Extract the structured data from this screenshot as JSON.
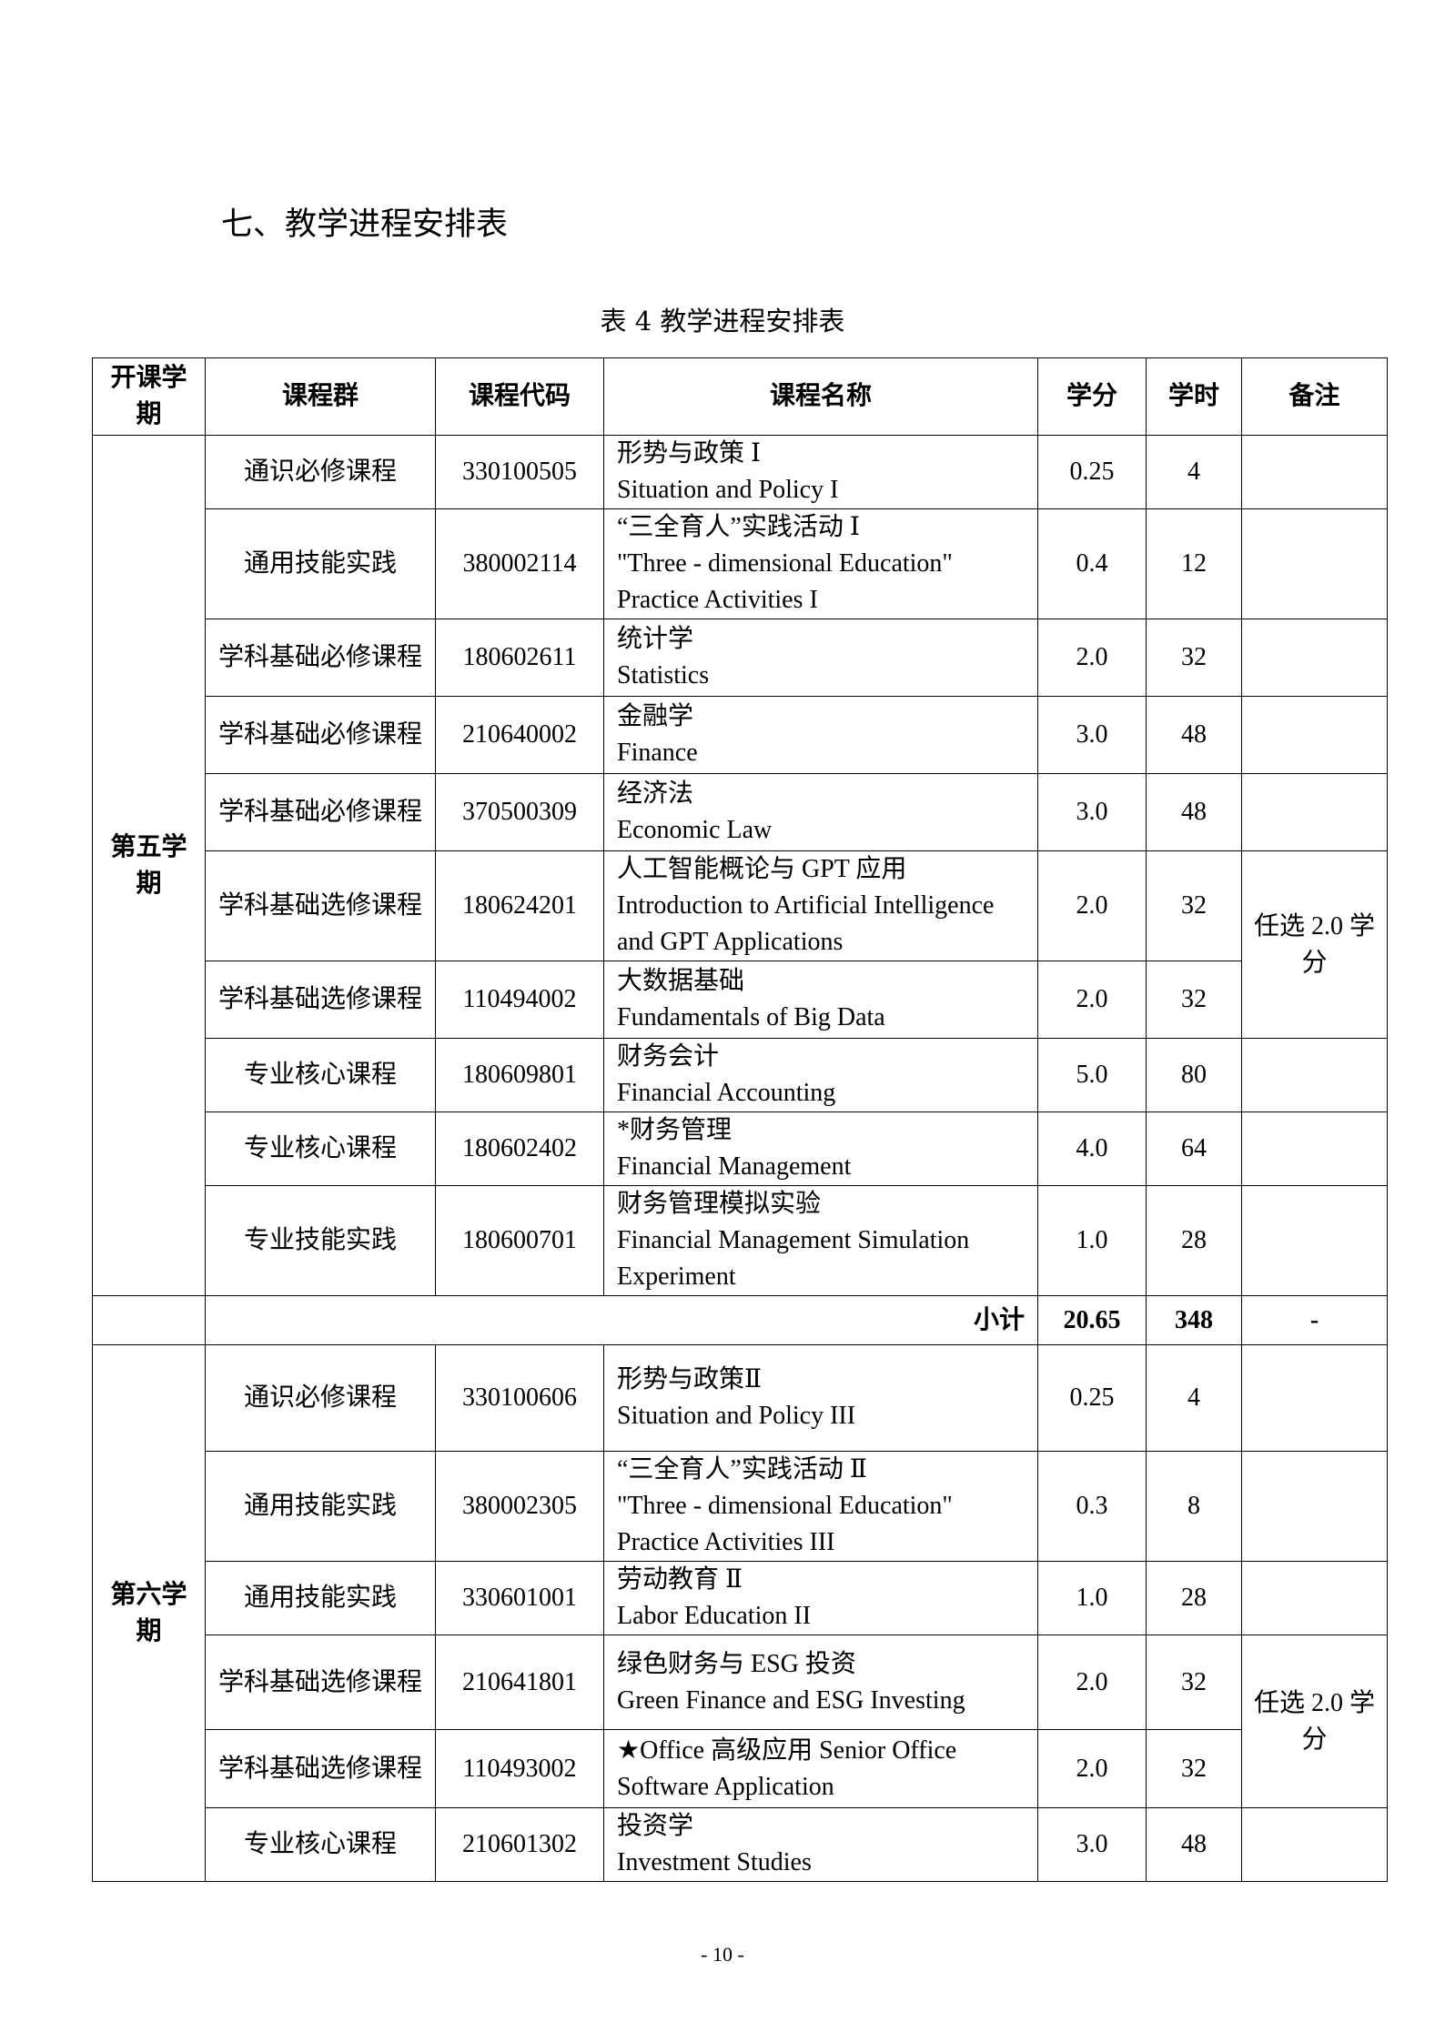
{
  "heading": "七、教学进程安排表",
  "caption": "表 4  教学进程安排表",
  "headers": {
    "semester": "开课学期",
    "group": "课程群",
    "code": "课程代码",
    "name": "课程名称",
    "credits": "学分",
    "hours": "学时",
    "remark": "备注"
  },
  "sem5": {
    "label": "第五学期",
    "rows": [
      {
        "group": "通识必修课程",
        "code": "330100505",
        "name": "形势与政策 Ⅰ",
        "name_en": "Situation and Policy I",
        "credits": "0.25",
        "hours": "4"
      },
      {
        "group": "通用技能实践",
        "code": "380002114",
        "name": "“三全育人”实践活动 Ⅰ",
        "name_en": "\"Three - dimensional Education\" Practice Activities I",
        "credits": "0.4",
        "hours": "12"
      },
      {
        "group": "学科基础必修课程",
        "code": "180602611",
        "name": "统计学",
        "name_en": "Statistics",
        "credits": "2.0",
        "hours": "32"
      },
      {
        "group": "学科基础必修课程",
        "code": "210640002",
        "name": "金融学",
        "name_en": "Finance",
        "credits": "3.0",
        "hours": "48"
      },
      {
        "group": "学科基础必修课程",
        "code": "370500309",
        "name": "经济法",
        "name_en": "Economic Law",
        "credits": "3.0",
        "hours": "48"
      },
      {
        "group": "学科基础选修课程",
        "code": "180624201",
        "name": "人工智能概论与 GPT 应用",
        "name_en": "Introduction to Artificial Intelligence and GPT Applications",
        "credits": "2.0",
        "hours": "32"
      },
      {
        "group": "学科基础选修课程",
        "code": "110494002",
        "name": "大数据基础",
        "name_en": "Fundamentals of Big Data",
        "credits": "2.0",
        "hours": "32"
      },
      {
        "group": "专业核心课程",
        "code": "180609801",
        "name": "财务会计",
        "name_en": "Financial Accounting",
        "credits": "5.0",
        "hours": "80"
      },
      {
        "group": "专业核心课程",
        "code": "180602402",
        "name": "*财务管理",
        "name_en": "Financial Management",
        "credits": "4.0",
        "hours": "64"
      },
      {
        "group": "专业技能实践",
        "code": "180600701",
        "name": "财务管理模拟实验",
        "name_en": "Financial Management Simulation Experiment",
        "credits": "1.0",
        "hours": "28"
      }
    ],
    "elective_remark": "任选 2.0 学分",
    "subtotal": {
      "label": "小计",
      "credits": "20.65",
      "hours": "348",
      "remark": "-"
    }
  },
  "sem6": {
    "label": "第六学期",
    "rows": [
      {
        "group": "通识必修课程",
        "code": "330100606",
        "name": "形势与政策Ⅱ",
        "name_en": "Situation and Policy III",
        "credits": "0.25",
        "hours": "4"
      },
      {
        "group": "通用技能实践",
        "code": "380002305",
        "name": "“三全育人”实践活动 Ⅱ",
        "name_en": "\"Three - dimensional Education\" Practice Activities III",
        "credits": "0.3",
        "hours": "8"
      },
      {
        "group": "通用技能实践",
        "code": "330601001",
        "name": "劳动教育 Ⅱ",
        "name_en": "Labor Education II",
        "credits": "1.0",
        "hours": "28"
      },
      {
        "group": "学科基础选修课程",
        "code": "210641801",
        "name": "绿色财务与 ESG  投资",
        "name_en": "Green Finance and ESG Investing",
        "credits": "2.0",
        "hours": "32"
      },
      {
        "group": "学科基础选修课程",
        "code": "110493002",
        "name": "★Office  高级应用 Senior Office",
        "name_en": "Software Application",
        "credits": "2.0",
        "hours": "32"
      },
      {
        "group": "专业核心课程",
        "code": "210601302",
        "name": "投资学",
        "name_en": "Investment Studies",
        "credits": "3.0",
        "hours": "48"
      }
    ],
    "elective_remark": "任选 2.0 学分"
  },
  "page_number": "- 10 -"
}
